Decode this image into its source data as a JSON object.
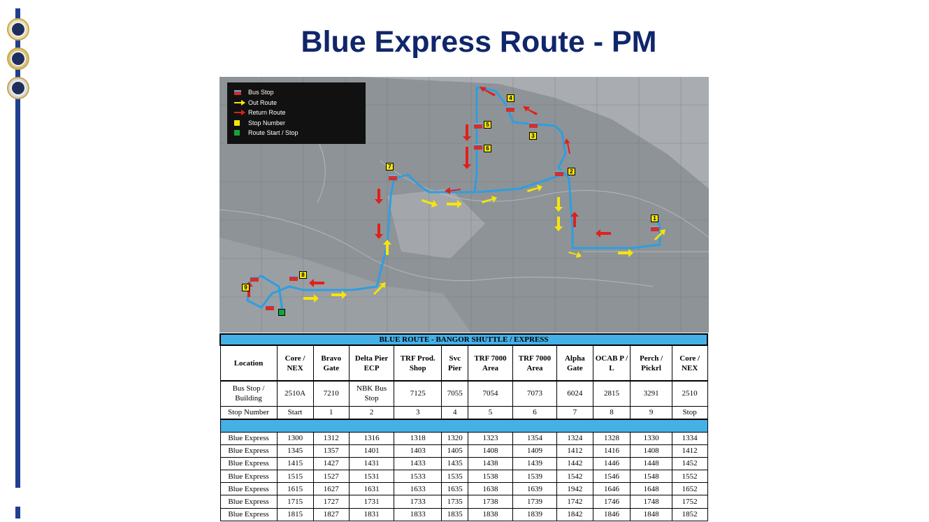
{
  "page": {
    "title": "Blue Express Route - PM"
  },
  "map": {
    "legend": [
      {
        "label": "Bus Stop",
        "icon": "bus-stop-icon"
      },
      {
        "label": "Out Route",
        "icon": "yellow-arrow-icon",
        "color": "#f5e50a"
      },
      {
        "label": "Return Route",
        "icon": "red-arrow-icon",
        "color": "#e0201b"
      },
      {
        "label": "Stop Number",
        "icon": "yellow-square-icon",
        "color": "#f5e50a"
      },
      {
        "label": "Route Start / Stop",
        "icon": "green-square-icon",
        "color": "#17a339"
      }
    ],
    "stop_badges": [
      "1",
      "2",
      "3",
      "4",
      "5",
      "6",
      "7",
      "8",
      "9"
    ],
    "route_color": "#2f9ee0"
  },
  "schedule": {
    "banner": "BLUE ROUTE - BANGOR SHUTTLE / EXPRESS",
    "location_label": "Location",
    "locations": [
      "Core  /  NEX",
      "Bravo  Gate",
      "Delta  Pier  ECP",
      "TRF  Prod.  Shop",
      "Svc Pier",
      "TRF  7000  Area",
      "TRF  7000  Area",
      "Alpha  Gate",
      "OCAB P  / L",
      "Perch /  Pickrl",
      "Core  /  NEX"
    ],
    "building_label": "Bus Stop /  Building",
    "buildings": [
      "2510A",
      "7210",
      "NBK Bus  Stop",
      "7125",
      "7055",
      "7054",
      "7073",
      "6024",
      "2815",
      "3291",
      "2510"
    ],
    "stop_number_label": "Stop Number",
    "stop_numbers": [
      "Start",
      "1",
      "2",
      "3",
      "4",
      "5",
      "6",
      "7",
      "8",
      "9",
      "Stop"
    ],
    "trips": [
      {
        "name": "Blue Express",
        "times": [
          "1300",
          "1312",
          "1316",
          "1318",
          "1320",
          "1323",
          "1354",
          "1324",
          "1328",
          "1330",
          "1334"
        ]
      },
      {
        "name": "Blue Express",
        "times": [
          "1345",
          "1357",
          "1401",
          "1403",
          "1405",
          "1408",
          "1409",
          "1412",
          "1416",
          "1408",
          "1412"
        ]
      },
      {
        "name": "Blue Express",
        "times": [
          "1415",
          "1427",
          "1431",
          "1433",
          "1435",
          "1438",
          "1439",
          "1442",
          "1446",
          "1448",
          "1452"
        ]
      },
      {
        "name": "Blue Express",
        "times": [
          "1515",
          "1527",
          "1531",
          "1533",
          "1535",
          "1538",
          "1539",
          "1542",
          "1546",
          "1548",
          "1552"
        ]
      },
      {
        "name": "Blue Express",
        "times": [
          "1615",
          "1627",
          "1631",
          "1633",
          "1635",
          "1638",
          "1639",
          "1942",
          "1646",
          "1648",
          "1652"
        ]
      },
      {
        "name": "Blue Express",
        "times": [
          "1715",
          "1727",
          "1731",
          "1733",
          "1735",
          "1738",
          "1739",
          "1742",
          "1746",
          "1748",
          "1752"
        ]
      },
      {
        "name": "Blue Express",
        "times": [
          "1815",
          "1827",
          "1831",
          "1833",
          "1835",
          "1838",
          "1839",
          "1842",
          "1846",
          "1848",
          "1852"
        ]
      }
    ]
  }
}
